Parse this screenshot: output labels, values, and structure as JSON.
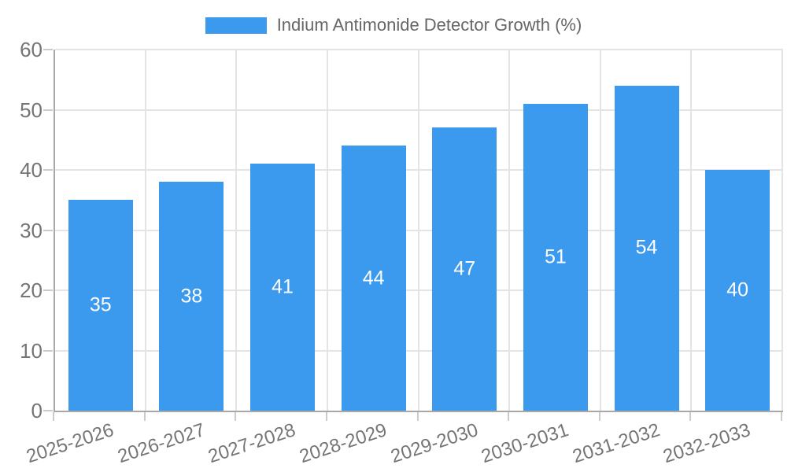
{
  "legend": {
    "label": "Indium Antimonide Detector Growth (%)"
  },
  "chart_data": {
    "type": "bar",
    "title": "Indium Antimonide Detector Growth (%)",
    "categories": [
      "2025-2026",
      "2026-2027",
      "2027-2028",
      "2028-2029",
      "2029-2030",
      "2030-2031",
      "2031-2032",
      "2032-2033"
    ],
    "values": [
      35,
      38,
      41,
      44,
      47,
      51,
      54,
      40
    ],
    "value_labels": [
      "35",
      "38",
      "41",
      "44",
      "47",
      "51",
      "54",
      "40"
    ],
    "xlabel": "",
    "ylabel": "",
    "ylim": [
      0,
      60
    ],
    "ytick_step": 10,
    "yticks": [
      "0",
      "10",
      "20",
      "30",
      "40",
      "50",
      "60"
    ],
    "grid": true,
    "legend_position": "top",
    "colors": {
      "bar": "#3B99EE",
      "value_label": "#ffffff",
      "grid": "#E4E4E4",
      "axis": "#A8A8A8",
      "tick": "#CBCBCB",
      "tick_label": "#757575",
      "legend_text": "#666666",
      "background": "#ffffff"
    }
  }
}
